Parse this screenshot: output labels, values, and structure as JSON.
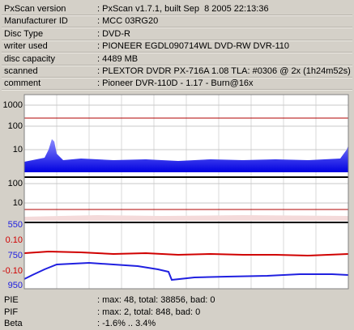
{
  "info": [
    {
      "label": "PxScan version",
      "value": ": PxScan v1.7.1, built Sep  8 2005 22:13:36"
    },
    {
      "label": "Manufacturer ID",
      "value": ": MCC 03RG20"
    },
    {
      "label": "Disc Type",
      "value": ": DVD-R"
    },
    {
      "label": "writer used",
      "value": ": PIONEER EGDL090714WL DVD-RW DVR-110"
    },
    {
      "label": "disc capacity",
      "value": ": 4489 MB"
    },
    {
      "label": "scanned",
      "value": ": PLEXTOR DVDR PX-716A 1.08 TLA: #0306 @ 2x (1h24m52s)"
    },
    {
      "label": "comment",
      "value": ": Pioneer DVR-110D - 1.17 - Burn@16x"
    }
  ],
  "graph": {
    "pie_axis": [
      "1000",
      "100",
      "10"
    ],
    "pif_axis": [
      "100",
      "10"
    ],
    "jitter_axis": [
      "550",
      "0.10",
      "750",
      "-0.10",
      "950"
    ]
  },
  "stats": [
    {
      "label": "PIE",
      "value": ": max: 48, total: 38856, bad: 0"
    },
    {
      "label": "PIF",
      "value": ": max: 2, total: 848, bad: 0"
    },
    {
      "label": "Beta",
      "value": ": -1.6% .. 3.4%"
    }
  ]
}
